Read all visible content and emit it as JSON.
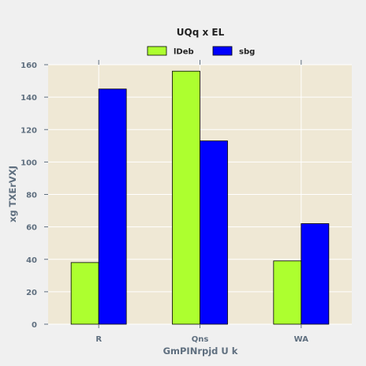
{
  "chart_data": {
    "type": "bar",
    "title": "UQq x EL",
    "xlabel": "GmPINrpjd U k",
    "ylabel": "xg TXErVXJ",
    "categories": [
      "R",
      "Qns",
      "WA"
    ],
    "series": [
      {
        "name": "lDeb",
        "values": [
          38,
          156,
          39
        ],
        "color": "#adff2f"
      },
      {
        "name": "sbg",
        "values": [
          145,
          113,
          62
        ],
        "color": "#0000ff"
      }
    ],
    "ylim": [
      0,
      160
    ],
    "yticks": [
      "0",
      "20",
      "40",
      "60",
      "80",
      "100",
      "120",
      "140",
      "160"
    ],
    "grid": true,
    "legend_position": "top-center",
    "background_color": "#efe8d5",
    "grid_color": "#ffffff"
  }
}
